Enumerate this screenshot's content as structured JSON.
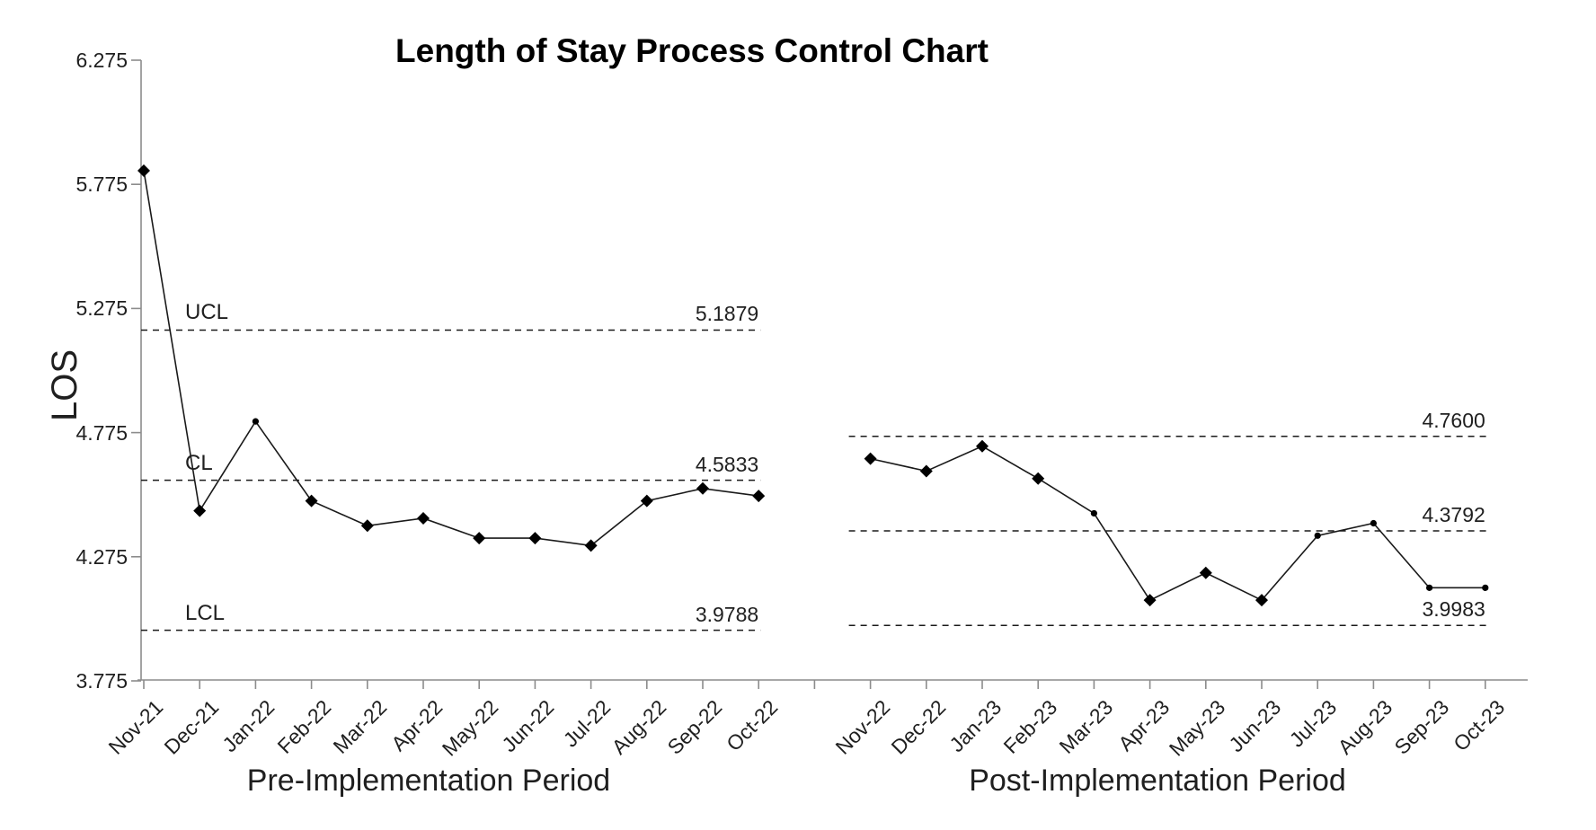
{
  "chart_data": {
    "type": "line",
    "title": "Length of Stay Process Control Chart",
    "ylabel": "LOS",
    "xlabel": "",
    "ylim": [
      3.775,
      6.275
    ],
    "grid": false,
    "legend": "none",
    "y_tick_labels": [
      "6.275",
      "5.775",
      "5.275",
      "4.775",
      "4.275",
      "3.775"
    ],
    "y_tick_values": [
      6.275,
      5.775,
      5.275,
      4.775,
      4.275,
      3.775
    ],
    "line_color": "#1a1a1a",
    "marker_color": "#000000",
    "axis_color": "#8c8c8c",
    "series": [
      {
        "name": "Pre-Implementation Period",
        "start_slot": 0,
        "categories": [
          "Nov-21",
          "Dec-21",
          "Jan-22",
          "Feb-22",
          "Mar-22",
          "Apr-22",
          "May-22",
          "Jun-22",
          "Jul-22",
          "Aug-22",
          "Sep-22",
          "Oct-22"
        ],
        "values": [
          5.83,
          4.46,
          4.82,
          4.5,
          4.4,
          4.43,
          4.35,
          4.35,
          4.32,
          4.5,
          4.55,
          4.52
        ],
        "markers": [
          "diamond",
          "diamond",
          "dot",
          "diamond",
          "diamond",
          "diamond",
          "diamond",
          "diamond",
          "diamond",
          "diamond",
          "diamond",
          "diamond"
        ],
        "control_limits": [
          {
            "name": "UCL",
            "label": "5.1879",
            "value": 5.1879
          },
          {
            "name": "CL",
            "label": "4.5833",
            "value": 4.5833
          },
          {
            "name": "LCL",
            "label": "3.9788",
            "value": 3.9788
          }
        ]
      },
      {
        "name": "Post-Implementation Period",
        "start_slot": 13,
        "categories": [
          "Nov-22",
          "Dec-22",
          "Jan-23",
          "Feb-23",
          "Mar-23",
          "Apr-23",
          "May-23",
          "Jun-23",
          "Jul-23",
          "Aug-23",
          "Sep-23",
          "Oct-23"
        ],
        "values": [
          4.67,
          4.62,
          4.72,
          4.59,
          4.45,
          4.1,
          4.21,
          4.1,
          4.36,
          4.41,
          4.15,
          4.15
        ],
        "markers": [
          "diamond",
          "diamond",
          "diamond",
          "diamond",
          "dot",
          "diamond",
          "diamond",
          "diamond",
          "dot",
          "dot",
          "dot",
          "dot"
        ],
        "control_limits": [
          {
            "name": "",
            "label": "4.7600",
            "value": 4.76
          },
          {
            "name": "",
            "label": "4.3792",
            "value": 4.3792
          },
          {
            "name": "",
            "label": "3.9983",
            "value": 3.9983
          }
        ]
      }
    ]
  }
}
